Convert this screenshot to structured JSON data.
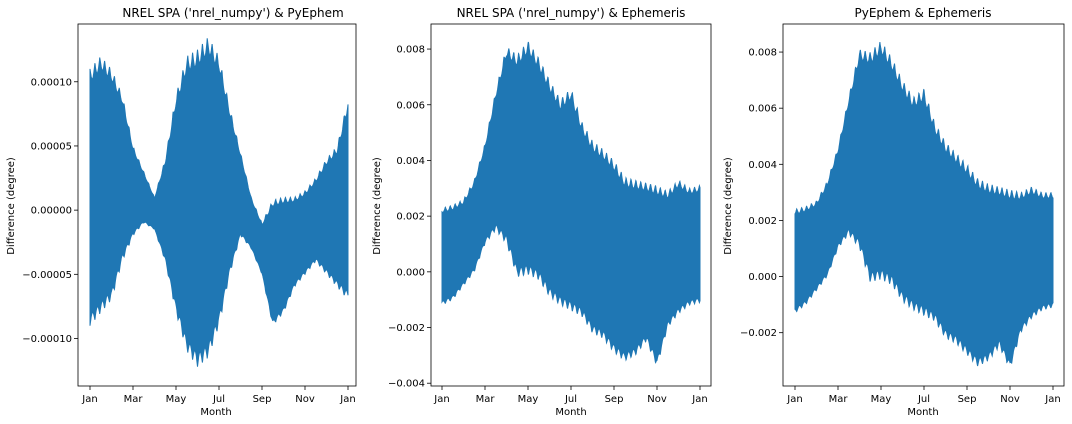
{
  "chart_data": [
    {
      "type": "area",
      "title": "NREL SPA ('nrel_numpy') & PyEphem",
      "xlabel": "Month",
      "ylabel": "Difference (degree)",
      "x_tick_labels": [
        "Jan",
        "Mar",
        "May",
        "Jul",
        "Sep",
        "Nov",
        "Jan"
      ],
      "y_ticks": [
        -0.0001,
        -5e-05,
        0.0,
        5e-05,
        0.0001
      ],
      "y_tick_labels": [
        "−0.00010",
        "−0.00005",
        "0.00000",
        "0.00005",
        "0.00010"
      ],
      "ylim": [
        -0.000137,
        0.000145
      ],
      "series": [
        {
          "color": "#1f77b4",
          "x_month": [
            0,
            0.5,
            1,
            1.5,
            2,
            2.5,
            3,
            3.5,
            4,
            4.5,
            5,
            5.5,
            6,
            6.5,
            7,
            7.5,
            8,
            8.5,
            9,
            9.5,
            10,
            10.5,
            11,
            11.5,
            12
          ],
          "upper": [
            0.00011,
            0.00012,
            0.00011,
            9e-05,
            5e-05,
            3e-05,
            1e-05,
            4e-05,
            9e-05,
            0.00012,
            0.000125,
            0.000135,
            0.00012,
            8e-05,
            4.5e-05,
            1e-05,
            -1e-05,
            8e-06,
            1e-05,
            1e-05,
            1.5e-05,
            2.5e-05,
            4e-05,
            5e-05,
            8.7e-05
          ],
          "lower": [
            -9e-05,
            -8e-05,
            -7e-05,
            -4e-05,
            -2e-05,
            -1e-05,
            -1.5e-05,
            -4e-05,
            -8e-05,
            -0.00011,
            -0.000122,
            -0.000115,
            -9e-05,
            -5e-05,
            -2e-05,
            -3e-05,
            -5e-05,
            -9e-05,
            -8e-05,
            -6e-05,
            -5e-05,
            -4e-05,
            -5e-05,
            -6e-05,
            -7e-05
          ]
        }
      ]
    },
    {
      "type": "area",
      "title": "NREL SPA ('nrel_numpy') & Ephemeris",
      "xlabel": "Month",
      "ylabel": "Difference (degree)",
      "x_tick_labels": [
        "Jan",
        "Mar",
        "May",
        "Jul",
        "Sep",
        "Nov",
        "Jan"
      ],
      "y_ticks": [
        -0.004,
        -0.002,
        0.0,
        0.002,
        0.004,
        0.006,
        0.008
      ],
      "y_tick_labels": [
        "−0.004",
        "−0.002",
        "0.000",
        "0.002",
        "0.004",
        "0.006",
        "0.008"
      ],
      "ylim": [
        -0.0041,
        0.0089
      ],
      "series": [
        {
          "color": "#1f77b4",
          "x_month": [
            0,
            0.5,
            1,
            1.5,
            2,
            2.5,
            3,
            3.5,
            4,
            4.5,
            5,
            5.5,
            6,
            6.5,
            7,
            7.5,
            8,
            8.5,
            9,
            9.5,
            10,
            10.5,
            11,
            11.5,
            12
          ],
          "upper": [
            0.0023,
            0.0024,
            0.0026,
            0.0033,
            0.0046,
            0.0065,
            0.0081,
            0.0078,
            0.0083,
            0.0077,
            0.0069,
            0.0062,
            0.0066,
            0.0054,
            0.0047,
            0.0044,
            0.004,
            0.0034,
            0.0033,
            0.0032,
            0.0031,
            0.0029,
            0.0033,
            0.003,
            0.0031
          ],
          "lower": [
            -0.0012,
            -0.001,
            -0.0005,
            0.0,
            0.001,
            0.0015,
            0.001,
            -0.0002,
            -0.0001,
            -0.0003,
            -0.0009,
            -0.0012,
            -0.0014,
            -0.0016,
            -0.0022,
            -0.0024,
            -0.0029,
            -0.0032,
            -0.003,
            -0.0025,
            -0.0034,
            -0.002,
            -0.0015,
            -0.0012,
            -0.0011
          ]
        }
      ]
    },
    {
      "type": "area",
      "title": "PyEphem & Ephemeris",
      "xlabel": "Month",
      "ylabel": "Difference (degree)",
      "x_tick_labels": [
        "Jan",
        "Mar",
        "May",
        "Jul",
        "Sep",
        "Nov",
        "Jan"
      ],
      "y_ticks": [
        -0.002,
        0.0,
        0.002,
        0.004,
        0.006,
        0.008
      ],
      "y_tick_labels": [
        "−0.002",
        "0.000",
        "0.002",
        "0.004",
        "0.006",
        "0.008"
      ],
      "ylim": [
        -0.0039,
        0.009
      ],
      "series": [
        {
          "color": "#1f77b4",
          "x_month": [
            0,
            0.5,
            1,
            1.5,
            2,
            2.5,
            3,
            3.5,
            4,
            4.5,
            5,
            5.5,
            6,
            6.5,
            7,
            7.5,
            8,
            8.5,
            9,
            9.5,
            10,
            10.5,
            11,
            11.5,
            12
          ],
          "upper": [
            0.0024,
            0.0025,
            0.0027,
            0.0034,
            0.0046,
            0.0064,
            0.0081,
            0.008,
            0.0084,
            0.0078,
            0.007,
            0.0064,
            0.0067,
            0.0055,
            0.0048,
            0.0044,
            0.004,
            0.0035,
            0.0033,
            0.0032,
            0.0031,
            0.003,
            0.0032,
            0.003,
            0.003
          ],
          "lower": [
            -0.0013,
            -0.001,
            -0.0005,
            0.0,
            0.001,
            0.0015,
            0.001,
            -0.0002,
            -0.0001,
            -0.0003,
            -0.0009,
            -0.0012,
            -0.0014,
            -0.0016,
            -0.0022,
            -0.0024,
            -0.0028,
            -0.0032,
            -0.003,
            -0.0025,
            -0.0033,
            -0.002,
            -0.0015,
            -0.0012,
            -0.0011
          ]
        }
      ]
    }
  ]
}
